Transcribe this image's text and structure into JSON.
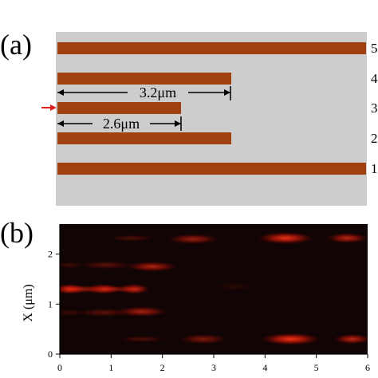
{
  "panel_a": {
    "label": "(a)",
    "dimensions": [
      "3.2μm",
      "2.6μm"
    ],
    "waveguides": [
      {
        "number": "5",
        "length_um": 6.0
      },
      {
        "number": "4",
        "length_um": 3.2
      },
      {
        "number": "3",
        "length_um": 2.6
      },
      {
        "number": "2",
        "length_um": 3.2
      },
      {
        "number": "1",
        "length_um": 6.0
      }
    ],
    "input_arrow": "red arrow at waveguide 3",
    "colors": {
      "waveguide": "#a0400e",
      "substrate": "#cdcdcd",
      "arrow": "#e02020"
    }
  },
  "panel_b": {
    "label": "(b)",
    "ylabel": "X (μm)"
  },
  "chart_data": {
    "type": "heatmap",
    "description_colormap": "black-to-red field intensity",
    "x_ticks": [
      "0",
      "1",
      "2",
      "3",
      "4",
      "5",
      "6"
    ],
    "y_ticks": [
      "0",
      "1",
      "2"
    ],
    "xlim": [
      0,
      6
    ],
    "ylim": [
      0,
      2.6
    ],
    "xlabel": "",
    "ylabel": "X (μm)",
    "grid": false,
    "intensity_spots": [
      {
        "x": 0.2,
        "y": 1.3,
        "w": 0.45,
        "h": 0.12,
        "v": 0.95
      },
      {
        "x": 0.85,
        "y": 1.3,
        "w": 0.5,
        "h": 0.12,
        "v": 0.85
      },
      {
        "x": 1.45,
        "y": 1.3,
        "w": 0.45,
        "h": 0.12,
        "v": 0.8
      },
      {
        "x": 0.45,
        "y": 1.3,
        "w": 0.7,
        "h": 0.09,
        "v": 0.5
      },
      {
        "x": 1.1,
        "y": 1.3,
        "w": 0.8,
        "h": 0.08,
        "v": 0.4
      },
      {
        "x": 1.8,
        "y": 1.75,
        "w": 0.75,
        "h": 0.12,
        "v": 0.65
      },
      {
        "x": 0.9,
        "y": 1.78,
        "w": 0.8,
        "h": 0.1,
        "v": 0.3
      },
      {
        "x": 0.2,
        "y": 1.78,
        "w": 0.4,
        "h": 0.08,
        "v": 0.2
      },
      {
        "x": 1.6,
        "y": 0.85,
        "w": 0.75,
        "h": 0.12,
        "v": 0.6
      },
      {
        "x": 0.85,
        "y": 0.83,
        "w": 0.8,
        "h": 0.1,
        "v": 0.3
      },
      {
        "x": 0.2,
        "y": 0.83,
        "w": 0.4,
        "h": 0.08,
        "v": 0.18
      },
      {
        "x": 2.6,
        "y": 2.3,
        "w": 0.75,
        "h": 0.12,
        "v": 0.55
      },
      {
        "x": 4.4,
        "y": 2.32,
        "w": 0.8,
        "h": 0.14,
        "v": 0.9
      },
      {
        "x": 5.6,
        "y": 2.32,
        "w": 0.6,
        "h": 0.12,
        "v": 0.7
      },
      {
        "x": 1.4,
        "y": 2.32,
        "w": 0.7,
        "h": 0.08,
        "v": 0.25
      },
      {
        "x": 2.8,
        "y": 0.3,
        "w": 0.7,
        "h": 0.12,
        "v": 0.45
      },
      {
        "x": 4.5,
        "y": 0.3,
        "w": 0.85,
        "h": 0.14,
        "v": 0.95
      },
      {
        "x": 5.7,
        "y": 0.3,
        "w": 0.55,
        "h": 0.12,
        "v": 0.7
      },
      {
        "x": 1.6,
        "y": 0.3,
        "w": 0.7,
        "h": 0.08,
        "v": 0.25
      },
      {
        "x": 3.4,
        "y": 1.35,
        "w": 0.6,
        "h": 0.1,
        "v": 0.1
      }
    ]
  }
}
